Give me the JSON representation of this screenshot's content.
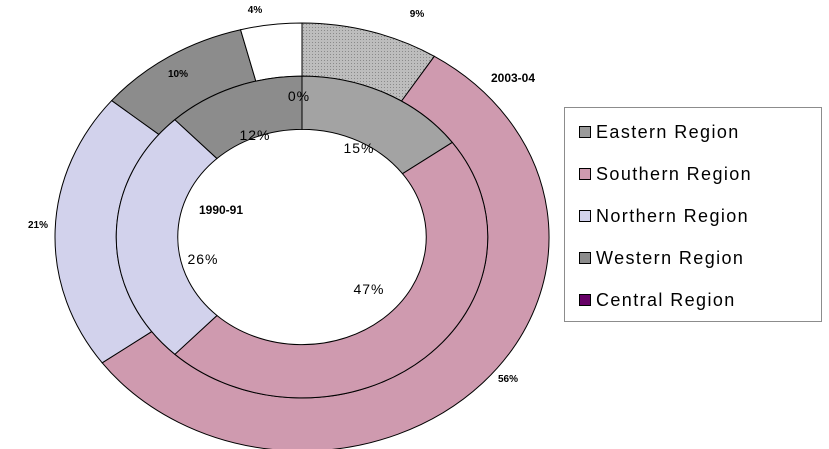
{
  "chart_data": {
    "type": "donut",
    "rings": [
      {
        "name": "2003-04",
        "values": [
          9,
          56,
          21,
          10,
          4
        ],
        "labels": [
          "9%",
          "56%",
          "21%",
          "10%",
          "4%"
        ]
      },
      {
        "name": "1990-91",
        "values": [
          15,
          47,
          26,
          12,
          0
        ],
        "labels": [
          "15%",
          "47%",
          "26%",
          "12%",
          "0%"
        ]
      }
    ],
    "categories": [
      "Eastern Region",
      "Southern Region",
      "Northern Region",
      "Western Region",
      "Central Region"
    ],
    "colors": [
      "#a3a3a3",
      "#cf9aaf",
      "#d2d2ec",
      "#8c8c8c",
      "#ffffff"
    ],
    "legend_colors": [
      "#9a9a9a",
      "#cf9aaf",
      "#d2d2ec",
      "#8c8c8c",
      "#660066"
    ],
    "legend_position": "right"
  }
}
